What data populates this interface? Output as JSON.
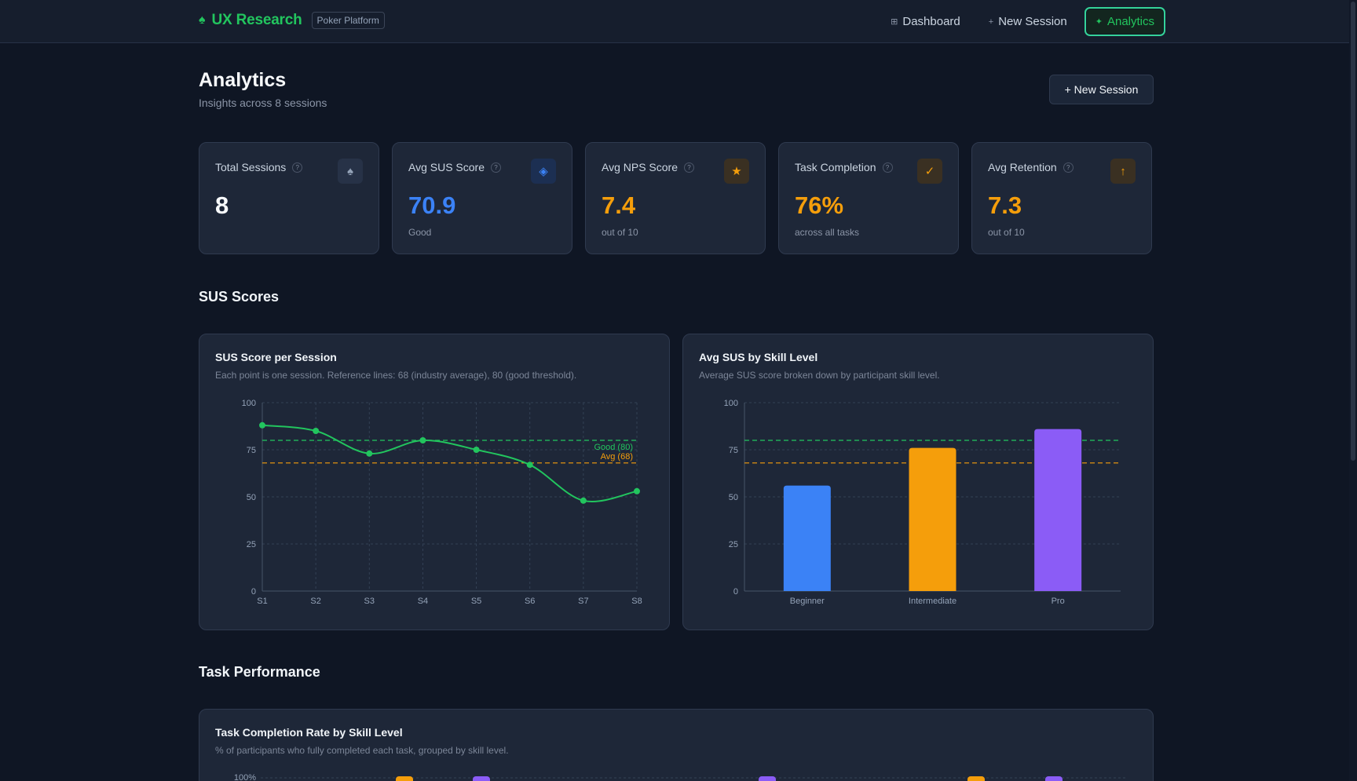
{
  "app": {
    "brand_icon": "spade-icon",
    "brand_name": "UX Research",
    "brand_tag": "Poker Platform"
  },
  "nav": [
    {
      "label": "Dashboard",
      "icon": "⊞",
      "active": false
    },
    {
      "label": "New Session",
      "icon": "+",
      "active": false
    },
    {
      "label": "Analytics",
      "icon": "✦",
      "active": true
    }
  ],
  "page": {
    "title": "Analytics",
    "subtitle": "Insights across 8 sessions",
    "cta_label": "+ New Session"
  },
  "stats": [
    {
      "label": "Total Sessions",
      "value": "8",
      "note": "",
      "icon": "♠",
      "icon_name": "spade-icon",
      "color": "#f8fafc",
      "icon_color": "#94a3b8",
      "icon_bg": "#273247"
    },
    {
      "label": "Avg SUS Score",
      "value": "70.9",
      "note": "Good",
      "icon": "◈",
      "icon_name": "diamond-icon",
      "color": "#3b82f6",
      "icon_color": "#3b82f6",
      "icon_bg": "#1c2f52"
    },
    {
      "label": "Avg NPS Score",
      "value": "7.4",
      "note": "out of 10",
      "icon": "★",
      "icon_name": "star-icon",
      "color": "#f59e0b",
      "icon_color": "#f59e0b",
      "icon_bg": "#3a3022"
    },
    {
      "label": "Task Completion",
      "value": "76%",
      "note": "across all tasks",
      "icon": "✓",
      "icon_name": "check-icon",
      "color": "#f59e0b",
      "icon_color": "#f59e0b",
      "icon_bg": "#3a3022"
    },
    {
      "label": "Avg Retention",
      "value": "7.3",
      "note": "out of 10",
      "icon": "↑",
      "icon_name": "arrow-up-icon",
      "color": "#f59e0b",
      "icon_color": "#f59e0b",
      "icon_bg": "#3a3022"
    }
  ],
  "sections": {
    "sus": "SUS Scores",
    "task": "Task Performance"
  },
  "charts": {
    "sus_line": {
      "title": "SUS Score per Session",
      "description": "Each point is one session. Reference lines: 68 (industry average), 80 (good threshold)."
    },
    "sus_bar": {
      "title": "Avg SUS by Skill Level",
      "description": "Average SUS score broken down by participant skill level."
    },
    "task_bar": {
      "title": "Task Completion Rate by Skill Level",
      "description": "% of participants who fully completed each task, grouped by skill level.",
      "ytop_label": "100%"
    }
  },
  "chart_data": [
    {
      "type": "line",
      "title": "SUS Score per Session",
      "x": [
        "S1",
        "S2",
        "S3",
        "S4",
        "S5",
        "S6",
        "S7",
        "S8"
      ],
      "series": [
        {
          "name": "",
          "values": [
            88,
            85,
            73,
            80,
            75,
            67,
            48,
            53
          ],
          "color": "#22c55e"
        }
      ],
      "ylim": [
        0,
        100
      ],
      "yticks": [
        0,
        25,
        50,
        75,
        100
      ],
      "reference_lines": [
        {
          "label": "Good (80)",
          "value": 80,
          "color": "#22c55e"
        },
        {
          "label": "Avg (68)",
          "value": 68,
          "color": "#f59e0b"
        }
      ],
      "grid": true
    },
    {
      "type": "bar",
      "title": "Avg SUS by Skill Level",
      "categories": [
        "Beginner",
        "Intermediate",
        "Pro"
      ],
      "values": [
        56,
        76,
        86
      ],
      "colors": [
        "#3b82f6",
        "#f59e0b",
        "#8b5cf6"
      ],
      "ylim": [
        0,
        100
      ],
      "yticks": [
        0,
        25,
        50,
        75,
        100
      ],
      "reference_lines": [
        {
          "value": 80,
          "color": "#22c55e"
        },
        {
          "value": 68,
          "color": "#f59e0b"
        }
      ],
      "grid": true
    }
  ]
}
